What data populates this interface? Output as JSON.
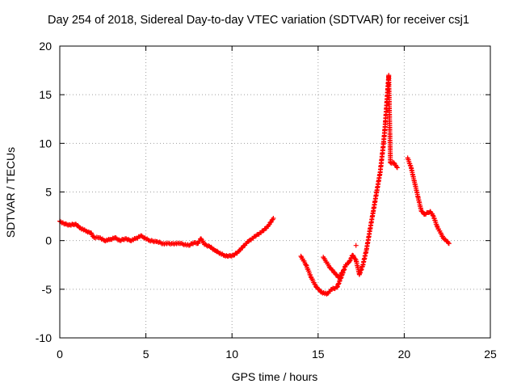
{
  "chart_data": {
    "type": "scatter",
    "title": "Day 254 of 2018, Sidereal Day-to-day VTEC variation (SDTVAR) for receiver csj1",
    "xlabel": "GPS time / hours",
    "ylabel": "SDTVAR / TECUs",
    "xlim": [
      0,
      25
    ],
    "ylim": [
      -10,
      20
    ],
    "x_ticks": [
      0,
      5,
      10,
      15,
      20,
      25
    ],
    "y_ticks": [
      -10,
      -5,
      0,
      5,
      10,
      15,
      20
    ],
    "grid": true,
    "marker": "+",
    "color": "#ff0000",
    "series": [
      {
        "name": "SDTVAR",
        "points": [
          [
            0.0,
            2.0
          ],
          [
            0.3,
            1.7
          ],
          [
            0.6,
            1.6
          ],
          [
            0.9,
            1.7
          ],
          [
            1.2,
            1.3
          ],
          [
            1.5,
            1.0
          ],
          [
            1.8,
            0.8
          ],
          [
            2.0,
            0.3
          ],
          [
            2.3,
            0.3
          ],
          [
            2.6,
            0.0
          ],
          [
            2.9,
            0.1
          ],
          [
            3.2,
            0.3
          ],
          [
            3.5,
            0.0
          ],
          [
            3.8,
            0.2
          ],
          [
            4.1,
            0.0
          ],
          [
            4.4,
            0.2
          ],
          [
            4.7,
            0.5
          ],
          [
            5.2,
            0.0
          ],
          [
            5.6,
            -0.1
          ],
          [
            6.0,
            -0.3
          ],
          [
            6.5,
            -0.3
          ],
          [
            7.0,
            -0.3
          ],
          [
            7.5,
            -0.5
          ],
          [
            7.8,
            -0.2
          ],
          [
            8.0,
            -0.3
          ],
          [
            8.2,
            0.2
          ],
          [
            8.4,
            -0.4
          ],
          [
            8.7,
            -0.6
          ],
          [
            9.0,
            -1.0
          ],
          [
            9.2,
            -1.2
          ],
          [
            9.5,
            -1.5
          ],
          [
            9.8,
            -1.6
          ],
          [
            10.1,
            -1.5
          ],
          [
            10.4,
            -1.1
          ],
          [
            10.7,
            -0.5
          ],
          [
            11.0,
            0.0
          ],
          [
            11.4,
            0.5
          ],
          [
            11.8,
            1.0
          ],
          [
            12.1,
            1.5
          ],
          [
            12.4,
            2.3
          ],
          [
            14.0,
            -1.6
          ],
          [
            14.3,
            -2.5
          ],
          [
            14.6,
            -3.8
          ],
          [
            14.9,
            -4.8
          ],
          [
            15.2,
            -5.3
          ],
          [
            15.5,
            -5.5
          ],
          [
            15.8,
            -5.0
          ],
          [
            16.1,
            -4.8
          ],
          [
            16.4,
            -3.5
          ],
          [
            16.6,
            -2.5
          ],
          [
            16.8,
            -2.2
          ],
          [
            17.0,
            -1.5
          ],
          [
            17.2,
            -2.0
          ],
          [
            17.4,
            -3.5
          ],
          [
            17.6,
            -2.5
          ],
          [
            17.8,
            -1.0
          ],
          [
            18.0,
            1.0
          ],
          [
            18.2,
            3.0
          ],
          [
            18.4,
            5.0
          ],
          [
            18.6,
            7.0
          ],
          [
            18.8,
            10.0
          ],
          [
            18.9,
            12.0
          ],
          [
            19.0,
            14.5
          ],
          [
            19.1,
            17.0
          ],
          [
            19.2,
            8.0
          ],
          [
            19.4,
            8.0
          ],
          [
            19.6,
            7.5
          ],
          [
            15.3,
            -1.7
          ],
          [
            15.7,
            -2.8
          ],
          [
            16.2,
            -3.8
          ],
          [
            16.5,
            -3.0
          ],
          [
            17.2,
            -0.5
          ],
          [
            20.2,
            8.5
          ],
          [
            20.4,
            7.5
          ],
          [
            20.6,
            6.0
          ],
          [
            20.8,
            4.5
          ],
          [
            21.0,
            3.0
          ],
          [
            21.2,
            2.7
          ],
          [
            21.5,
            3.0
          ],
          [
            21.7,
            2.5
          ],
          [
            21.9,
            1.5
          ],
          [
            22.1,
            0.8
          ],
          [
            22.3,
            0.2
          ],
          [
            22.5,
            -0.1
          ],
          [
            22.6,
            -0.3
          ]
        ]
      }
    ]
  }
}
